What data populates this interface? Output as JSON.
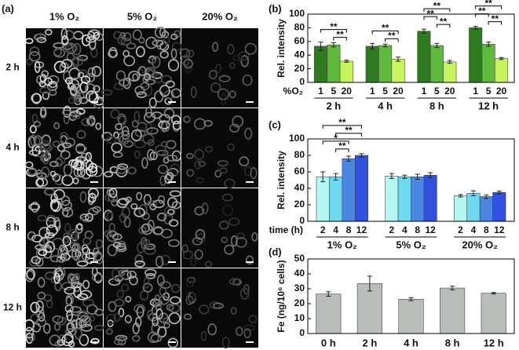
{
  "image_grid": {
    "label": "(a)",
    "columns": [
      "1% O₂",
      "5% O₂",
      "20% O₂"
    ],
    "rows": [
      "2 h",
      "4 h",
      "8 h",
      "12 h"
    ]
  },
  "chart_data": [
    {
      "type": "bar",
      "label": "(b)",
      "ylabel": "Rel. intensity",
      "ylim": [
        0,
        100
      ],
      "yticks": [
        0,
        20,
        40,
        60,
        80,
        100
      ],
      "categories": [
        "2 h",
        "4 h",
        "8 h",
        "12 h"
      ],
      "series_label": "%O₂",
      "series": [
        {
          "name": "1",
          "color": "#2d7a1f",
          "values": [
            53,
            53,
            75,
            80
          ],
          "errors": [
            6,
            4,
            3,
            2
          ]
        },
        {
          "name": "5",
          "color": "#5dba3b",
          "values": [
            55,
            54,
            54,
            56
          ],
          "errors": [
            3,
            2,
            3,
            3
          ]
        },
        {
          "name": "20",
          "color": "#c5f55a",
          "values": [
            31,
            34,
            30,
            35
          ],
          "errors": [
            1.5,
            3,
            2,
            1.5
          ]
        }
      ],
      "significance": [
        {
          "category": "2 h",
          "between": [
            "5",
            "20"
          ],
          "label": "**"
        },
        {
          "category": "2 h",
          "between": [
            "1",
            "20"
          ],
          "label": "**"
        },
        {
          "category": "4 h",
          "between": [
            "5",
            "20"
          ],
          "label": "**"
        },
        {
          "category": "4 h",
          "between": [
            "1",
            "20"
          ],
          "label": "**"
        },
        {
          "category": "8 h",
          "between": [
            "5",
            "20"
          ],
          "label": "**"
        },
        {
          "category": "8 h",
          "between": [
            "1",
            "5"
          ],
          "label": "**"
        },
        {
          "category": "8 h",
          "between": [
            "1",
            "20"
          ],
          "label": "**"
        },
        {
          "category": "12 h",
          "between": [
            "5",
            "20"
          ],
          "label": "**"
        },
        {
          "category": "12 h",
          "between": [
            "1",
            "5"
          ],
          "label": "**"
        },
        {
          "category": "12 h",
          "between": [
            "1",
            "20"
          ],
          "label": "**"
        }
      ]
    },
    {
      "type": "bar",
      "label": "(c)",
      "ylabel": "Rel. intensity",
      "ylim": [
        0,
        100
      ],
      "yticks": [
        0,
        20,
        40,
        60,
        80,
        100
      ],
      "categories": [
        "1% O₂",
        "5% O₂",
        "20% O₂"
      ],
      "series_label": "time (h)",
      "series": [
        {
          "name": "2",
          "color": "#b4f7f2",
          "values": [
            54,
            55,
            31
          ],
          "errors": [
            6,
            3,
            1.5
          ]
        },
        {
          "name": "4",
          "color": "#6fd7ee",
          "values": [
            54,
            54,
            34
          ],
          "errors": [
            4,
            2,
            3
          ]
        },
        {
          "name": "8",
          "color": "#4b86e0",
          "values": [
            76,
            54,
            30
          ],
          "errors": [
            3,
            3,
            2
          ]
        },
        {
          "name": "12",
          "color": "#3050e0",
          "values": [
            80,
            56,
            35
          ],
          "errors": [
            2,
            3,
            1.5
          ]
        }
      ],
      "significance": [
        {
          "category": "1% O₂",
          "between": [
            "4",
            "8"
          ],
          "label": "**"
        },
        {
          "category": "1% O₂",
          "between": [
            "2",
            "8"
          ],
          "label": "*"
        },
        {
          "category": "1% O₂",
          "between": [
            "4",
            "12"
          ],
          "label": "**"
        },
        {
          "category": "1% O₂",
          "between": [
            "2",
            "12"
          ],
          "label": "**"
        }
      ]
    },
    {
      "type": "bar",
      "label": "(d)",
      "ylabel": "Fe (ng/10⁶ cells)",
      "ylim": [
        0,
        50
      ],
      "yticks": [
        0,
        10,
        20,
        30,
        40,
        50
      ],
      "categories": [
        "0 h",
        "2 h",
        "4 h",
        "8 h",
        "12 h"
      ],
      "color": "#b9bdba",
      "values": [
        26.5,
        33.5,
        23,
        30.5,
        27
      ],
      "errors": [
        1.5,
        5,
        1,
        1.2,
        0.5
      ]
    }
  ]
}
